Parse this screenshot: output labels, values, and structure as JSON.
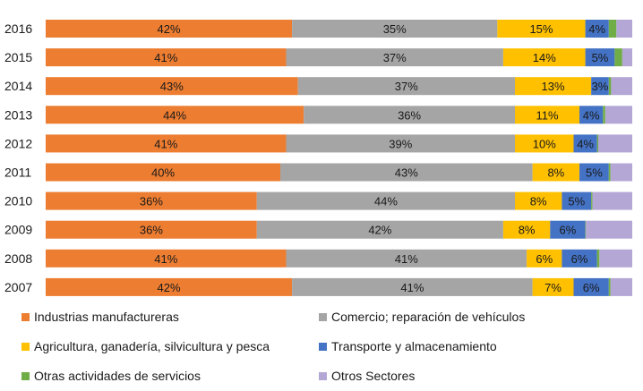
{
  "chart_data": {
    "type": "bar",
    "orientation": "horizontal",
    "stacked": true,
    "percent_stacked": true,
    "categories": [
      "2016",
      "2015",
      "2014",
      "2013",
      "2012",
      "2011",
      "2010",
      "2009",
      "2008",
      "2007"
    ],
    "series": [
      {
        "name": "Industrias manufactureras",
        "color": "#ED7D31",
        "values": [
          42,
          41,
          43,
          44,
          41,
          40,
          36,
          36,
          41,
          42
        ],
        "labels": [
          "42%",
          "41%",
          "43%",
          "44%",
          "41%",
          "40%",
          "36%",
          "36%",
          "41%",
          "42%"
        ]
      },
      {
        "name": "Comercio; reparación de vehículos",
        "color": "#A5A5A5",
        "values": [
          35,
          37,
          37,
          36,
          39,
          43,
          44,
          42,
          41,
          41
        ],
        "labels": [
          "35%",
          "37%",
          "37%",
          "36%",
          "39%",
          "43%",
          "44%",
          "42%",
          "41%",
          "41%"
        ]
      },
      {
        "name": "Agricultura, ganadería,  silvicultura y pesca",
        "color": "#FFC000",
        "values": [
          15,
          14,
          13,
          11,
          10,
          8,
          8,
          8,
          6,
          7
        ],
        "labels": [
          "15%",
          "14%",
          "13%",
          "11%",
          "10%",
          "8%",
          "8%",
          "8%",
          "6%",
          "7%"
        ]
      },
      {
        "name": "Transporte y almacenamiento",
        "color": "#4472C4",
        "values": [
          4,
          5,
          3,
          4,
          4,
          5,
          5,
          6,
          6,
          6
        ],
        "labels": [
          "4%",
          "5%",
          "3%",
          "4%",
          "4%",
          "5%",
          "5%",
          "6%",
          "6%",
          "6%"
        ]
      },
      {
        "name": "Otras actividades de servicios",
        "color": "#70AD47",
        "values": [
          1.3,
          1.3,
          0.4,
          0.4,
          0.2,
          0.3,
          0.2,
          0.1,
          0.4,
          0.3
        ],
        "labels": [
          "",
          "",
          "",
          "",
          "",
          "",
          "",
          "",
          "",
          ""
        ]
      },
      {
        "name": "Otros Sectores",
        "color": "#B4A7D6",
        "values": [
          2.7,
          1.7,
          3.6,
          4.6,
          5.8,
          3.7,
          6.8,
          7.9,
          5.6,
          3.7
        ],
        "labels": [
          "",
          "",
          "",
          "",
          "",
          "",
          "",
          "",
          "",
          ""
        ]
      }
    ],
    "xlim": [
      0,
      100
    ],
    "grid": false,
    "legend_position": "bottom",
    "title": "",
    "xlabel": "",
    "ylabel": ""
  }
}
